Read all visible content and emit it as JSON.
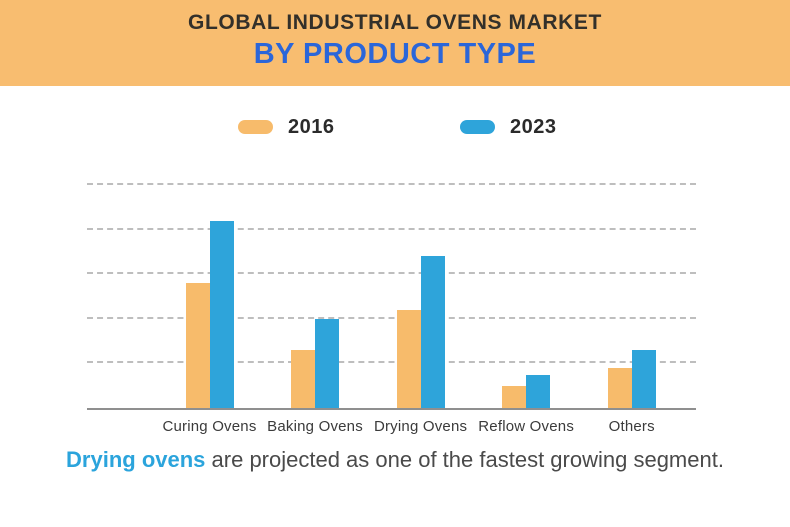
{
  "header": {
    "title": "GLOBAL INDUSTRIAL OVENS MARKET",
    "subtitle": "BY PRODUCT TYPE"
  },
  "legend": {
    "items": [
      {
        "label": "2016",
        "color": "#f7bb6b"
      },
      {
        "label": "2023",
        "color": "#2ea4da"
      }
    ]
  },
  "chart_data": {
    "type": "bar",
    "title": "Global Industrial Ovens Market by Product Type",
    "categories": [
      "Curing Ovens",
      "Baking Ovens",
      "Drying Ovens",
      "Reflow Ovens",
      "Others"
    ],
    "series": [
      {
        "name": "2016",
        "color": "#f7bb6b",
        "values": [
          2.8,
          1.3,
          2.2,
          0.5,
          0.9
        ]
      },
      {
        "name": "2023",
        "color": "#2ea4da",
        "values": [
          4.2,
          2.0,
          3.4,
          0.75,
          1.3
        ]
      }
    ],
    "xlabel": "",
    "ylabel": "",
    "ylim": [
      0,
      5
    ],
    "gridlines": [
      1,
      2,
      3,
      4,
      5
    ],
    "grid": "horizontal-dashed",
    "y_tick_labels_visible": false,
    "legend_position": "top"
  },
  "caption": {
    "highlight": "Drying ovens",
    "rest": " are projected as one of the fastest growing segment."
  },
  "colors": {
    "header_bg": "#f8bd70",
    "title_text": "#33302a",
    "subtitle_text": "#2b66d9",
    "bar_2016": "#f7bb6b",
    "bar_2023": "#2ea4da",
    "gridline": "#b3b3b3",
    "baseline": "#8f8f8f",
    "category_label": "#3b3b3b",
    "caption_text": "#4a4a4a",
    "caption_highlight": "#2ba4dc"
  }
}
